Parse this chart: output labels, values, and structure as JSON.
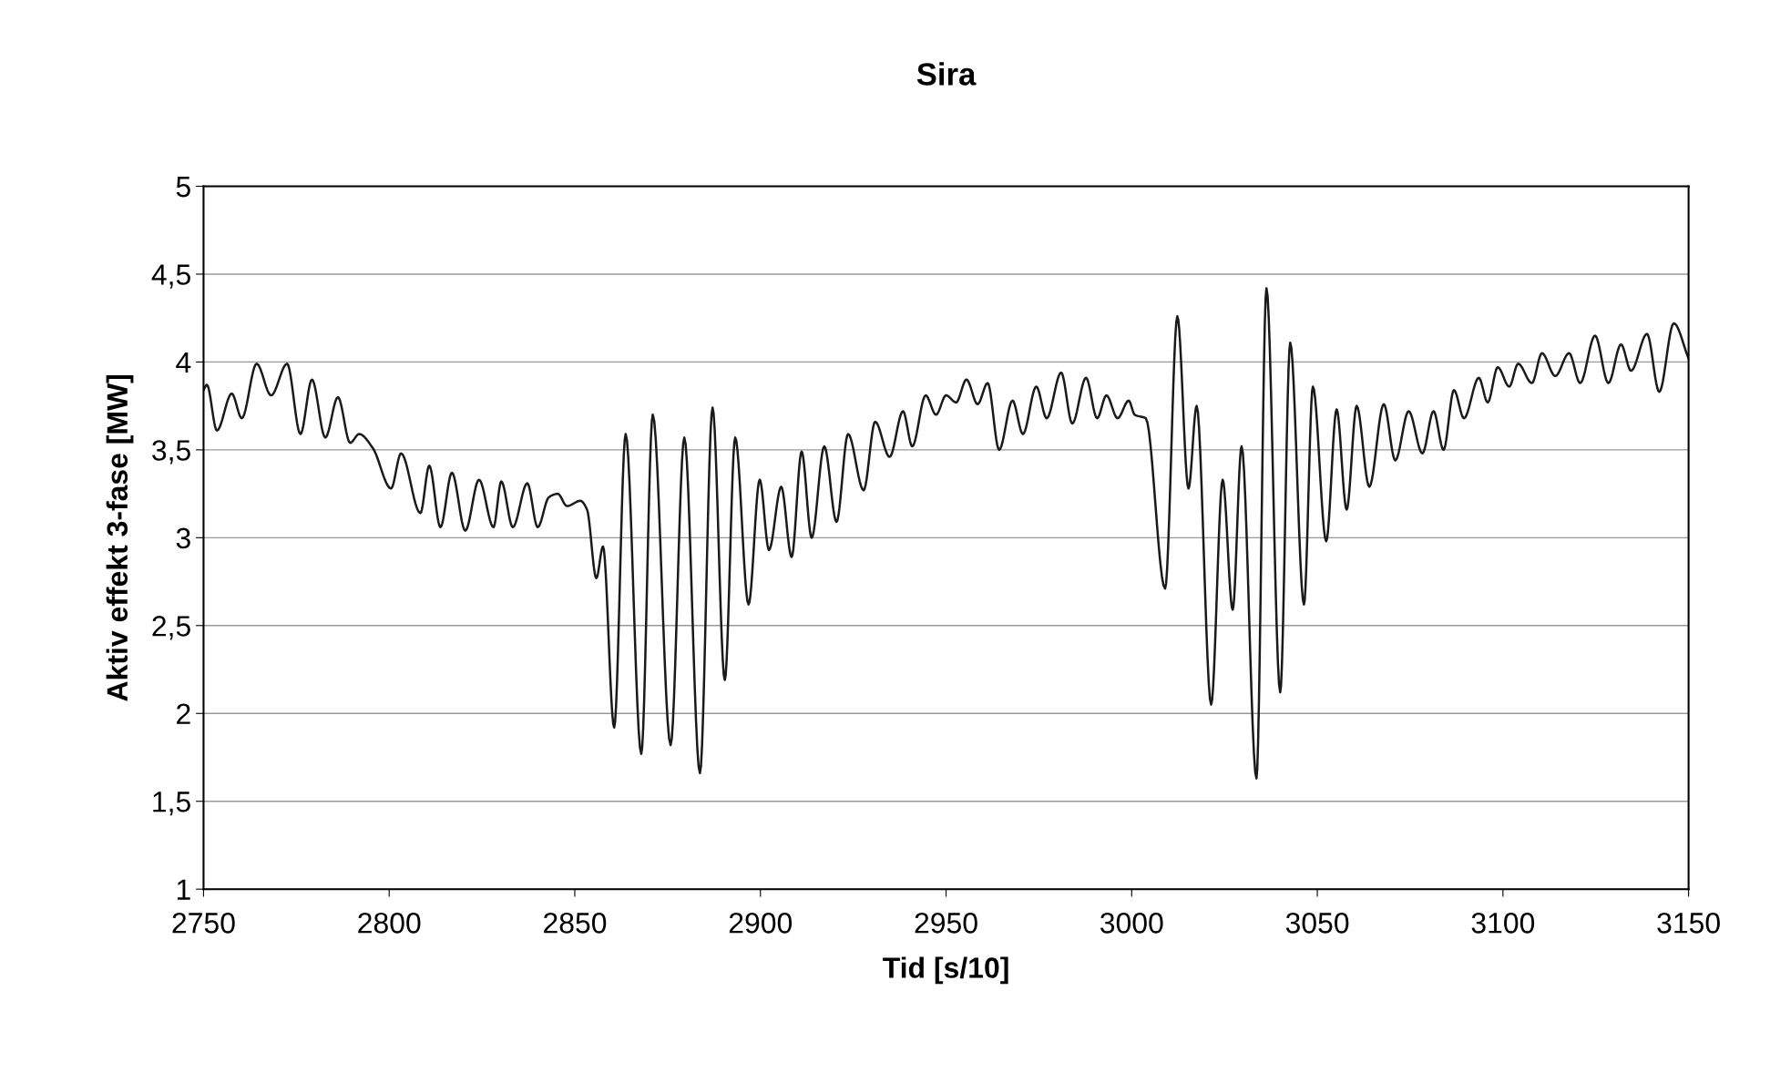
{
  "chart_data": {
    "type": "line",
    "title": "Sira",
    "xlabel": "Tid [s/10]",
    "ylabel": "Aktiv effekt 3-fase [MW]",
    "xlim": [
      2750,
      3150
    ],
    "xticks": [
      2750,
      2800,
      2850,
      2900,
      2950,
      3000,
      3050,
      3100,
      3150
    ],
    "ylim": [
      1,
      5
    ],
    "yticks": [
      1,
      {
        "value": 1.5,
        "label": "1,5"
      },
      2,
      {
        "value": 2.5,
        "label": "2,5"
      },
      3,
      {
        "value": 3.5,
        "label": "3,5"
      },
      4,
      {
        "value": 4.5,
        "label": "4,5"
      },
      5
    ],
    "grid": "y",
    "legend": false,
    "marker": "none",
    "line_style": "solid",
    "series": [
      {
        "color": "#1a1a1a",
        "x": [
          2750,
          2750.9,
          2753.6,
          2757.6,
          2760.3,
          2764.3,
          2768.2,
          2772.5,
          2776.1,
          2779.2,
          2782.8,
          2786.2,
          2789.5,
          2791.9,
          2795.6,
          2800.5,
          2803.2,
          2808.4,
          2810.8,
          2813.8,
          2816.9,
          2820.5,
          2824.2,
          2828.1,
          2830.2,
          2833.3,
          2837.2,
          2840.0,
          2843.0,
          2845.4,
          2847.9,
          2851.5,
          2853.3,
          2855.8,
          2857.6,
          2860.6,
          2863.7,
          2867.9,
          2871.0,
          2875.8,
          2879.5,
          2883.7,
          2887.1,
          2890.4,
          2893.2,
          2896.8,
          2899.8,
          2902.3,
          2905.6,
          2908.4,
          2911.1,
          2913.8,
          2917.2,
          2920.5,
          2923.6,
          2927.8,
          2930.9,
          2934.8,
          2938.4,
          2940.9,
          2944.5,
          2947.3,
          2950.0,
          2952.7,
          2955.5,
          2958.5,
          2961.2,
          2964.3,
          2967.9,
          2970.7,
          2974.3,
          2977.1,
          2981.0,
          2984.0,
          2987.7,
          2990.7,
          2993.2,
          2996.2,
          2999.2,
          3000.8,
          3003.8,
          3009.0,
          3012.3,
          3015.3,
          3017.5,
          3021.4,
          3024.5,
          3027.2,
          3029.6,
          3033.6,
          3036.3,
          3040.0,
          3042.7,
          3046.4,
          3048.8,
          3052.4,
          3055.2,
          3057.9,
          3060.6,
          3064.0,
          3067.9,
          3071.0,
          3074.6,
          3078.3,
          3081.3,
          3084.0,
          3086.8,
          3089.5,
          3093.5,
          3095.9,
          3098.6,
          3101.7,
          3104.1,
          3107.8,
          3110.5,
          3114.1,
          3117.8,
          3120.8,
          3124.8,
          3128.4,
          3131.8,
          3134.5,
          3138.8,
          3142.1,
          3146.0,
          3150
        ],
        "values": [
          3.84,
          3.87,
          3.61,
          3.82,
          3.68,
          3.99,
          3.81,
          3.99,
          3.59,
          3.9,
          3.57,
          3.8,
          3.54,
          3.59,
          3.51,
          3.28,
          3.48,
          3.14,
          3.41,
          3.06,
          3.37,
          3.04,
          3.33,
          3.06,
          3.32,
          3.06,
          3.31,
          3.06,
          3.23,
          3.25,
          3.18,
          3.21,
          3.16,
          2.77,
          2.95,
          1.92,
          3.59,
          1.77,
          3.7,
          1.82,
          3.57,
          1.66,
          3.74,
          2.19,
          3.57,
          2.62,
          3.33,
          2.93,
          3.29,
          2.89,
          3.49,
          3.0,
          3.52,
          3.09,
          3.59,
          3.27,
          3.66,
          3.46,
          3.72,
          3.52,
          3.81,
          3.7,
          3.81,
          3.77,
          3.9,
          3.76,
          3.88,
          3.5,
          3.78,
          3.59,
          3.86,
          3.68,
          3.94,
          3.65,
          3.91,
          3.68,
          3.81,
          3.68,
          3.78,
          3.7,
          3.68,
          2.71,
          4.26,
          3.28,
          3.75,
          2.05,
          3.33,
          2.59,
          3.52,
          1.63,
          4.42,
          2.12,
          4.11,
          2.62,
          3.86,
          2.98,
          3.73,
          3.16,
          3.75,
          3.29,
          3.76,
          3.44,
          3.72,
          3.48,
          3.72,
          3.5,
          3.84,
          3.68,
          3.91,
          3.77,
          3.97,
          3.86,
          3.99,
          3.88,
          4.05,
          3.92,
          4.05,
          3.88,
          4.15,
          3.88,
          4.1,
          3.95,
          4.16,
          3.83,
          4.22,
          4.02
        ]
      }
    ]
  }
}
